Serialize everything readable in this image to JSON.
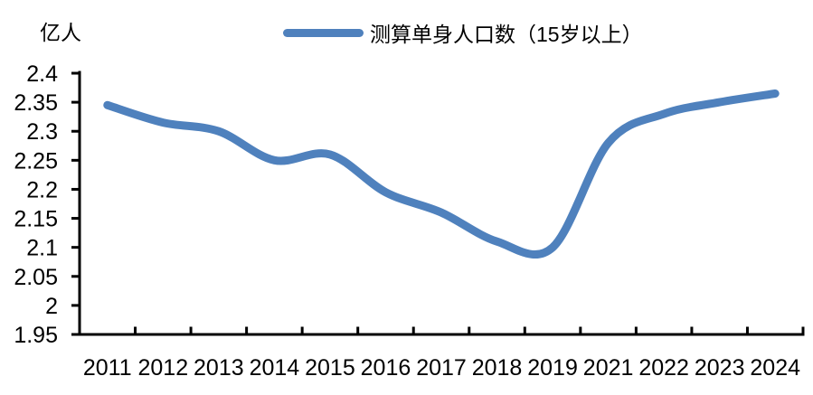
{
  "chart_data": {
    "type": "line",
    "title": "",
    "xlabel": "",
    "ylabel": "亿人",
    "categories": [
      "2011",
      "2012",
      "2013",
      "2014",
      "2015",
      "2016",
      "2017",
      "2018",
      "2019",
      "2021",
      "2022",
      "2023",
      "2024"
    ],
    "series": [
      {
        "name": "测算单身人口数（15岁以上）",
        "values": [
          2.345,
          2.315,
          2.3,
          2.25,
          2.26,
          2.195,
          2.16,
          2.11,
          2.1,
          2.28,
          2.33,
          2.35,
          2.365
        ],
        "color": "#4F81BD"
      }
    ],
    "ylim": [
      1.95,
      2.4
    ],
    "y_tick_step": 0.05,
    "y_ticks": [
      "2.4",
      "2.35",
      "2.3",
      "2.25",
      "2.2",
      "2.15",
      "2.1",
      "2.05",
      "2",
      "1.95"
    ],
    "grid": "off",
    "legend_position": "top-center",
    "line_smooth": true,
    "axis_color": "#000000",
    "background_color": "#FFFFFF"
  }
}
